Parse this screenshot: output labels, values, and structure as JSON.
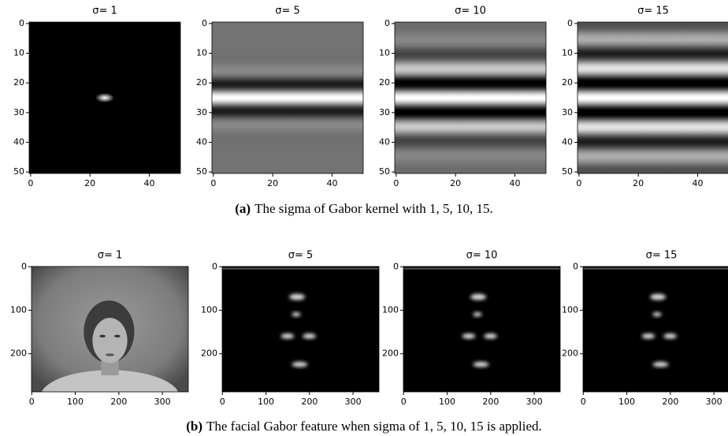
{
  "rows": [
    {
      "label": "(a)",
      "caption": "The sigma of Gabor kernel with 1, 5, 10, 15.",
      "panels": [
        {
          "title": "σ= 1",
          "xlim": [
            -0.5,
            50.5
          ],
          "ylim": [
            50.5,
            -0.5
          ],
          "xticks": [
            0,
            20,
            40
          ],
          "yticks": [
            0,
            10,
            20,
            30,
            40,
            50
          ]
        },
        {
          "title": "σ= 5",
          "xlim": [
            -0.5,
            50.5
          ],
          "ylim": [
            50.5,
            -0.5
          ],
          "xticks": [
            0,
            20,
            40
          ],
          "yticks": [
            0,
            10,
            20,
            30,
            40,
            50
          ]
        },
        {
          "title": "σ= 10",
          "xlim": [
            -0.5,
            50.5
          ],
          "ylim": [
            50.5,
            -0.5
          ],
          "xticks": [
            0,
            20,
            40
          ],
          "yticks": [
            0,
            10,
            20,
            30,
            40,
            50
          ]
        },
        {
          "title": "σ= 15",
          "xlim": [
            -0.5,
            50.5
          ],
          "ylim": [
            50.5,
            -0.5
          ],
          "xticks": [
            0,
            20,
            40
          ],
          "yticks": [
            0,
            10,
            20,
            30,
            40,
            50
          ]
        }
      ]
    },
    {
      "label": "(b)",
      "caption": "The facial Gabor feature when sigma of 1, 5, 10, 15 is applied.",
      "panels": [
        {
          "title": "σ= 1",
          "xlim": [
            -0.5,
            359.5
          ],
          "ylim": [
            287.5,
            -0.5
          ],
          "xticks": [
            0,
            100,
            200,
            300
          ],
          "yticks": [
            0,
            100,
            200
          ]
        },
        {
          "title": "σ= 5",
          "xlim": [
            -0.5,
            359.5
          ],
          "ylim": [
            287.5,
            -0.5
          ],
          "xticks": [
            0,
            100,
            200,
            300
          ],
          "yticks": [
            0,
            100,
            200
          ]
        },
        {
          "title": "σ= 10",
          "xlim": [
            -0.5,
            359.5
          ],
          "ylim": [
            287.5,
            -0.5
          ],
          "xticks": [
            0,
            100,
            200,
            300
          ],
          "yticks": [
            0,
            100,
            200
          ]
        },
        {
          "title": "σ= 15",
          "xlim": [
            -0.5,
            359.5
          ],
          "ylim": [
            287.5,
            -0.5
          ],
          "xticks": [
            0,
            100,
            200,
            300
          ],
          "yticks": [
            0,
            100,
            200
          ]
        }
      ]
    }
  ]
}
